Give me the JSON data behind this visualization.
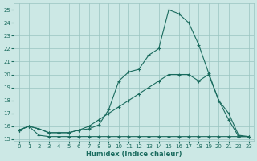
{
  "xlabel": "Humidex (Indice chaleur)",
  "xlim": [
    -0.5,
    23.5
  ],
  "ylim": [
    14.85,
    25.5
  ],
  "yticks": [
    15,
    16,
    17,
    18,
    19,
    20,
    21,
    22,
    23,
    24,
    25
  ],
  "xticks": [
    0,
    1,
    2,
    3,
    4,
    5,
    6,
    7,
    8,
    9,
    10,
    11,
    12,
    13,
    14,
    15,
    16,
    17,
    18,
    19,
    20,
    21,
    22,
    23
  ],
  "bg_color": "#cce8e5",
  "grid_color": "#99c4c0",
  "line_color": "#1a6b5e",
  "line1_x": [
    0,
    1,
    2,
    3,
    4,
    5,
    6,
    7,
    8,
    9,
    10,
    11,
    12,
    13,
    14,
    15,
    16,
    17,
    18,
    19,
    20,
    21,
    22,
    23
  ],
  "line1_y": [
    15.7,
    16.0,
    15.3,
    15.2,
    15.2,
    15.2,
    15.2,
    15.2,
    15.2,
    15.2,
    15.2,
    15.2,
    15.2,
    15.2,
    15.2,
    15.2,
    15.2,
    15.2,
    15.2,
    15.2,
    15.2,
    15.2,
    15.2,
    15.2
  ],
  "line2_x": [
    0,
    1,
    2,
    3,
    4,
    5,
    6,
    7,
    8,
    9,
    10,
    11,
    12,
    13,
    14,
    15,
    16,
    17,
    18,
    19,
    20,
    21,
    22,
    23
  ],
  "line2_y": [
    15.7,
    16.0,
    15.8,
    15.5,
    15.5,
    15.5,
    15.7,
    16.0,
    16.5,
    17.0,
    17.5,
    18.0,
    18.5,
    19.0,
    19.5,
    20.0,
    20.0,
    20.0,
    19.5,
    20.0,
    18.0,
    17.0,
    15.3,
    15.2
  ],
  "line3_x": [
    0,
    1,
    2,
    3,
    4,
    5,
    6,
    7,
    8,
    9,
    10,
    11,
    12,
    13,
    14,
    15,
    16,
    17,
    18,
    19,
    20,
    21,
    22,
    23
  ],
  "line3_y": [
    15.7,
    16.0,
    15.8,
    15.5,
    15.5,
    15.5,
    15.7,
    15.8,
    16.1,
    17.3,
    19.5,
    20.2,
    20.4,
    21.5,
    22.0,
    25.0,
    24.7,
    24.0,
    22.3,
    20.1,
    18.0,
    16.5,
    15.2,
    15.2
  ]
}
